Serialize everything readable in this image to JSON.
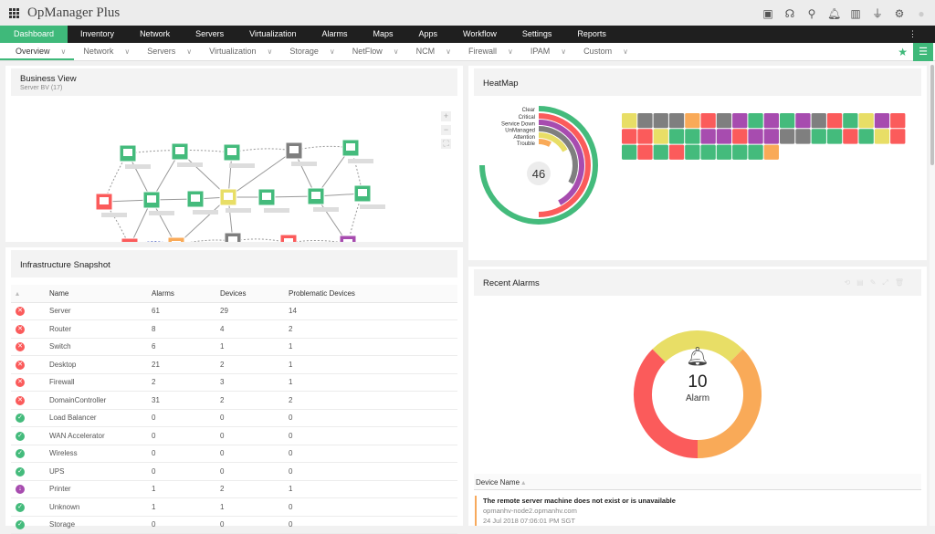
{
  "app": {
    "title": "OpManager Plus"
  },
  "top_icons": [
    "screen-icon",
    "headset-icon",
    "search-icon",
    "bell-icon",
    "license-icon",
    "plug-icon",
    "gear-icon",
    "user-icon"
  ],
  "nav": [
    "Dashboard",
    "Inventory",
    "Network",
    "Servers",
    "Virtualization",
    "Alarms",
    "Maps",
    "Apps",
    "Workflow",
    "Settings",
    "Reports"
  ],
  "subnav": [
    "Overview",
    "Network",
    "Servers",
    "Virtualization",
    "Storage",
    "NetFlow",
    "NCM",
    "Firewall",
    "IPAM",
    "Custom"
  ],
  "business_view": {
    "title": "Business View",
    "subtitle": "Server BV (17)",
    "node_status": [
      "clear",
      "clear",
      "clear",
      "unmanaged",
      "clear",
      "critical",
      "clear",
      "clear",
      "attention",
      "clear",
      "clear",
      "clear",
      "critical",
      "trouble",
      "unmanaged",
      "critical",
      "service-down"
    ]
  },
  "infra": {
    "title": "Infrastructure Snapshot",
    "columns": [
      "Name",
      "Alarms",
      "Devices",
      "Problematic Devices"
    ],
    "rows": [
      {
        "status": "critical",
        "name": "Server",
        "alarms": "61",
        "devices": "29",
        "problematic": "14"
      },
      {
        "status": "critical",
        "name": "Router",
        "alarms": "8",
        "devices": "4",
        "problematic": "2"
      },
      {
        "status": "critical",
        "name": "Switch",
        "alarms": "6",
        "devices": "1",
        "problematic": "1"
      },
      {
        "status": "critical",
        "name": "Desktop",
        "alarms": "21",
        "devices": "2",
        "problematic": "1"
      },
      {
        "status": "critical",
        "name": "Firewall",
        "alarms": "2",
        "devices": "3",
        "problematic": "1"
      },
      {
        "status": "critical",
        "name": "DomainController",
        "alarms": "31",
        "devices": "2",
        "problematic": "2"
      },
      {
        "status": "clear",
        "name": "Load Balancer",
        "alarms": "0",
        "devices": "0",
        "problematic": "0"
      },
      {
        "status": "clear",
        "name": "WAN Accelerator",
        "alarms": "0",
        "devices": "0",
        "problematic": "0"
      },
      {
        "status": "clear",
        "name": "Wireless",
        "alarms": "0",
        "devices": "0",
        "problematic": "0"
      },
      {
        "status": "clear",
        "name": "UPS",
        "alarms": "0",
        "devices": "0",
        "problematic": "0"
      },
      {
        "status": "service-down",
        "name": "Printer",
        "alarms": "1",
        "devices": "2",
        "problematic": "1"
      },
      {
        "status": "clear",
        "name": "Unknown",
        "alarms": "1",
        "devices": "1",
        "problematic": "0"
      },
      {
        "status": "clear",
        "name": "Storage",
        "alarms": "0",
        "devices": "0",
        "problematic": "0"
      }
    ]
  },
  "heatmap": {
    "title": "HeatMap",
    "total": "46",
    "legend": [
      "Clear",
      "Critical",
      "Service Down",
      "UnManaged",
      "Attention",
      "Trouble"
    ],
    "arc_fraction": [
      0.75,
      0.5,
      0.42,
      0.33,
      0.17,
      0.08
    ],
    "cells": [
      "attention",
      "unmanaged",
      "unmanaged",
      "unmanaged",
      "trouble",
      "critical",
      "unmanaged",
      "service-down",
      "clear",
      "service-down",
      "clear",
      "service-down",
      "unmanaged",
      "critical",
      "clear",
      "attention",
      "service-down",
      "critical",
      "critical",
      "critical",
      "attention",
      "clear",
      "clear",
      "service-down",
      "service-down",
      "critical",
      "service-down",
      "service-down",
      "unmanaged",
      "unmanaged",
      "clear",
      "clear",
      "critical",
      "clear",
      "attention",
      "critical",
      "clear",
      "critical",
      "clear",
      "critical",
      "clear",
      "clear",
      "clear",
      "clear",
      "clear",
      "trouble"
    ]
  },
  "colors": {
    "clear": "#44bb7c",
    "critical": "#fb5b5b",
    "service-down": "#a74caf",
    "unmanaged": "#7f7f7f",
    "attention": "#e8de66",
    "trouble": "#f9aa58",
    "accent": "#3fb97a"
  },
  "recent_alarms": {
    "title": "Recent Alarms",
    "count": "10",
    "label": "Alarm",
    "segments": [
      {
        "status": "attention",
        "value": 2.5
      },
      {
        "status": "trouble",
        "value": 3.75
      },
      {
        "status": "critical",
        "value": 3.75
      }
    ],
    "column": "Device Name",
    "items": [
      {
        "message": "The remote server machine does not exist or is unavailable",
        "device": "opmanhv-node2.opmanhv.com",
        "time": "24 Jul 2018 07:06:01 PM SGT"
      }
    ]
  }
}
